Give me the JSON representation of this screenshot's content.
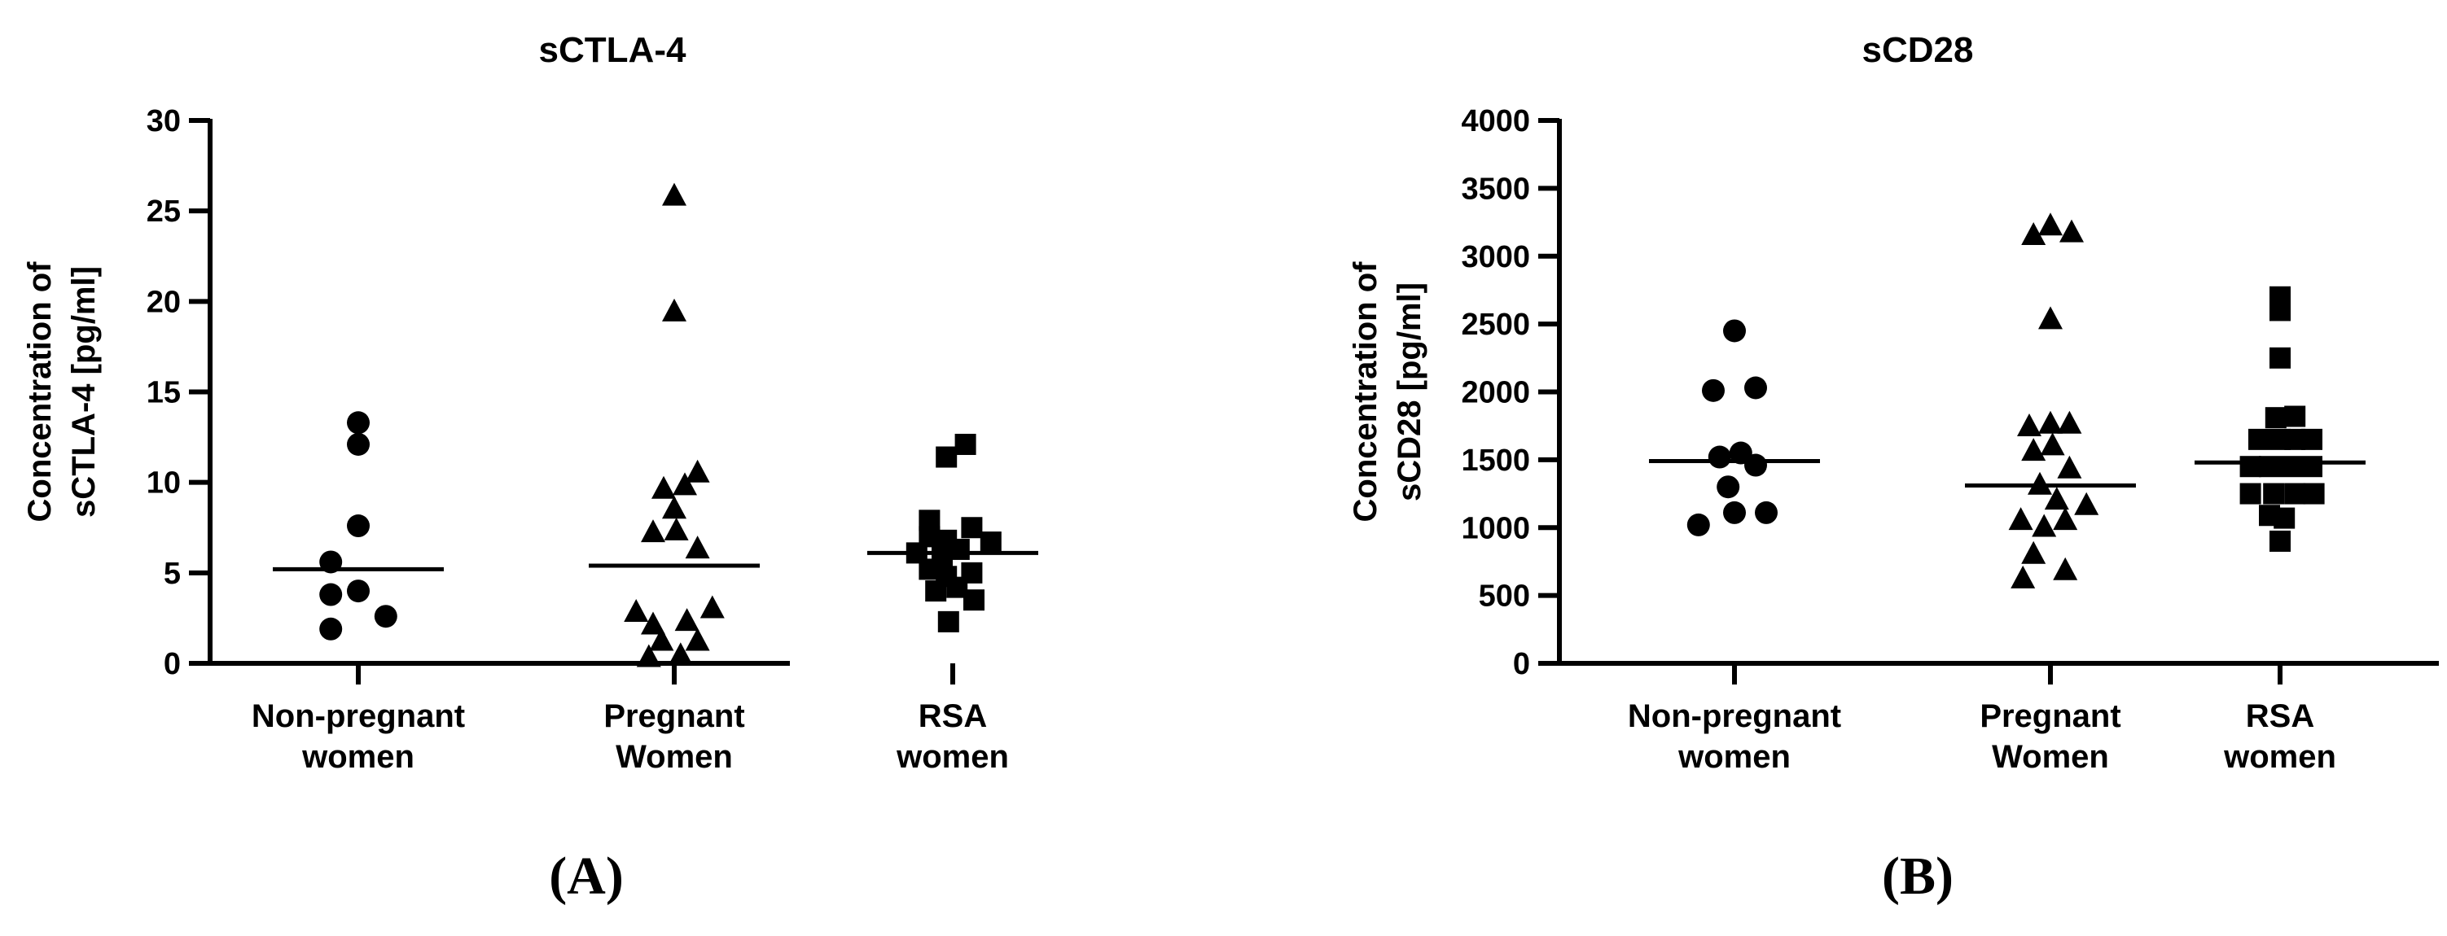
{
  "chart_data": [
    {
      "type": "scatter",
      "title": "sCTLA-4",
      "ylabel": [
        "Concentration of",
        "sCTLA-4 [pg/ml]"
      ],
      "ylim": [
        0,
        30
      ],
      "yticks": [
        0,
        5,
        10,
        15,
        20,
        25,
        30
      ],
      "categories": [
        [
          "Non-pregnant",
          "women"
        ],
        [
          "Pregnant",
          "Women"
        ],
        [
          "RSA",
          "women"
        ]
      ],
      "panel_label": "(A)",
      "series": [
        {
          "marker": "circle",
          "median": 5.2,
          "points": [
            {
              "x": 0.0,
              "y": 13.3
            },
            {
              "x": 0.0,
              "y": 12.1
            },
            {
              "x": 0.0,
              "y": 7.6
            },
            {
              "x": -0.26,
              "y": 5.6
            },
            {
              "x": -0.26,
              "y": 3.8
            },
            {
              "x": 0.0,
              "y": 4.0
            },
            {
              "x": -0.26,
              "y": 1.9
            },
            {
              "x": 0.26,
              "y": 2.6
            }
          ]
        },
        {
          "marker": "triangle",
          "median": 5.4,
          "points": [
            {
              "x": 0.0,
              "y": 25.8
            },
            {
              "x": 0.0,
              "y": 19.4
            },
            {
              "x": 0.22,
              "y": 10.5
            },
            {
              "x": -0.1,
              "y": 9.6
            },
            {
              "x": 0.1,
              "y": 9.8
            },
            {
              "x": 0.0,
              "y": 8.5
            },
            {
              "x": -0.2,
              "y": 7.2
            },
            {
              "x": 0.02,
              "y": 7.3
            },
            {
              "x": 0.22,
              "y": 6.3
            },
            {
              "x": -0.36,
              "y": 2.8
            },
            {
              "x": 0.36,
              "y": 3.0
            },
            {
              "x": -0.2,
              "y": 2.1
            },
            {
              "x": 0.12,
              "y": 2.3
            },
            {
              "x": -0.12,
              "y": 1.2
            },
            {
              "x": 0.22,
              "y": 1.2
            },
            {
              "x": -0.24,
              "y": 0.3
            },
            {
              "x": 0.06,
              "y": 0.4
            }
          ]
        },
        {
          "marker": "square",
          "median": 6.1,
          "points": [
            {
              "x": 0.12,
              "y": 12.1
            },
            {
              "x": -0.06,
              "y": 11.4
            },
            {
              "x": -0.22,
              "y": 7.9
            },
            {
              "x": -0.34,
              "y": 6.1
            },
            {
              "x": -0.22,
              "y": 7.0
            },
            {
              "x": -0.06,
              "y": 6.8
            },
            {
              "x": 0.18,
              "y": 7.5
            },
            {
              "x": 0.36,
              "y": 6.7
            },
            {
              "x": -0.1,
              "y": 5.9
            },
            {
              "x": 0.06,
              "y": 6.3
            },
            {
              "x": -0.22,
              "y": 5.2
            },
            {
              "x": -0.06,
              "y": 4.8
            },
            {
              "x": 0.18,
              "y": 5.0
            },
            {
              "x": -0.16,
              "y": 4.0
            },
            {
              "x": 0.04,
              "y": 4.2
            },
            {
              "x": 0.2,
              "y": 3.5
            },
            {
              "x": -0.04,
              "y": 2.3
            }
          ]
        }
      ]
    },
    {
      "type": "scatter",
      "title": "sCD28",
      "ylabel": [
        "Concentration of",
        "sCD28 [pg/ml]"
      ],
      "ylim": [
        0,
        4000
      ],
      "yticks": [
        0,
        500,
        1000,
        1500,
        2000,
        2500,
        3000,
        3500,
        4000
      ],
      "categories": [
        [
          "Non-pregnant",
          "women"
        ],
        [
          "Pregnant",
          "Women"
        ],
        [
          "RSA",
          "women"
        ]
      ],
      "panel_label": "(B)",
      "series": [
        {
          "marker": "circle",
          "median": 1490,
          "points": [
            {
              "x": 0.0,
              "y": 2450
            },
            {
              "x": -0.2,
              "y": 2010
            },
            {
              "x": 0.2,
              "y": 2030
            },
            {
              "x": -0.14,
              "y": 1520
            },
            {
              "x": 0.06,
              "y": 1550
            },
            {
              "x": 0.2,
              "y": 1460
            },
            {
              "x": -0.06,
              "y": 1300
            },
            {
              "x": -0.34,
              "y": 1020
            },
            {
              "x": 0.0,
              "y": 1110
            },
            {
              "x": 0.3,
              "y": 1110
            }
          ]
        },
        {
          "marker": "triangle",
          "median": 1310,
          "points": [
            {
              "x": -0.16,
              "y": 3150
            },
            {
              "x": 0.0,
              "y": 3220
            },
            {
              "x": 0.2,
              "y": 3170
            },
            {
              "x": 0.0,
              "y": 2530
            },
            {
              "x": -0.2,
              "y": 1740
            },
            {
              "x": 0.0,
              "y": 1760
            },
            {
              "x": 0.18,
              "y": 1760
            },
            {
              "x": -0.16,
              "y": 1560
            },
            {
              "x": 0.02,
              "y": 1600
            },
            {
              "x": 0.18,
              "y": 1430
            },
            {
              "x": -0.1,
              "y": 1310
            },
            {
              "x": 0.06,
              "y": 1200
            },
            {
              "x": -0.28,
              "y": 1050
            },
            {
              "x": -0.06,
              "y": 1000
            },
            {
              "x": 0.14,
              "y": 1050
            },
            {
              "x": 0.34,
              "y": 1160
            },
            {
              "x": -0.16,
              "y": 800
            },
            {
              "x": -0.26,
              "y": 620
            },
            {
              "x": 0.14,
              "y": 680
            }
          ]
        },
        {
          "marker": "square",
          "median": 1480,
          "points": [
            {
              "x": 0.0,
              "y": 2700
            },
            {
              "x": 0.0,
              "y": 2600
            },
            {
              "x": 0.0,
              "y": 2250
            },
            {
              "x": -0.04,
              "y": 1810
            },
            {
              "x": 0.14,
              "y": 1820
            },
            {
              "x": -0.2,
              "y": 1650
            },
            {
              "x": 0.0,
              "y": 1650
            },
            {
              "x": 0.14,
              "y": 1650
            },
            {
              "x": 0.3,
              "y": 1650
            },
            {
              "x": -0.28,
              "y": 1450
            },
            {
              "x": -0.1,
              "y": 1450
            },
            {
              "x": 0.1,
              "y": 1450
            },
            {
              "x": 0.3,
              "y": 1450
            },
            {
              "x": -0.28,
              "y": 1250
            },
            {
              "x": -0.06,
              "y": 1250
            },
            {
              "x": 0.14,
              "y": 1250
            },
            {
              "x": 0.32,
              "y": 1250
            },
            {
              "x": -0.1,
              "y": 1090
            },
            {
              "x": 0.04,
              "y": 1070
            },
            {
              "x": 0.0,
              "y": 900
            }
          ]
        }
      ]
    }
  ]
}
